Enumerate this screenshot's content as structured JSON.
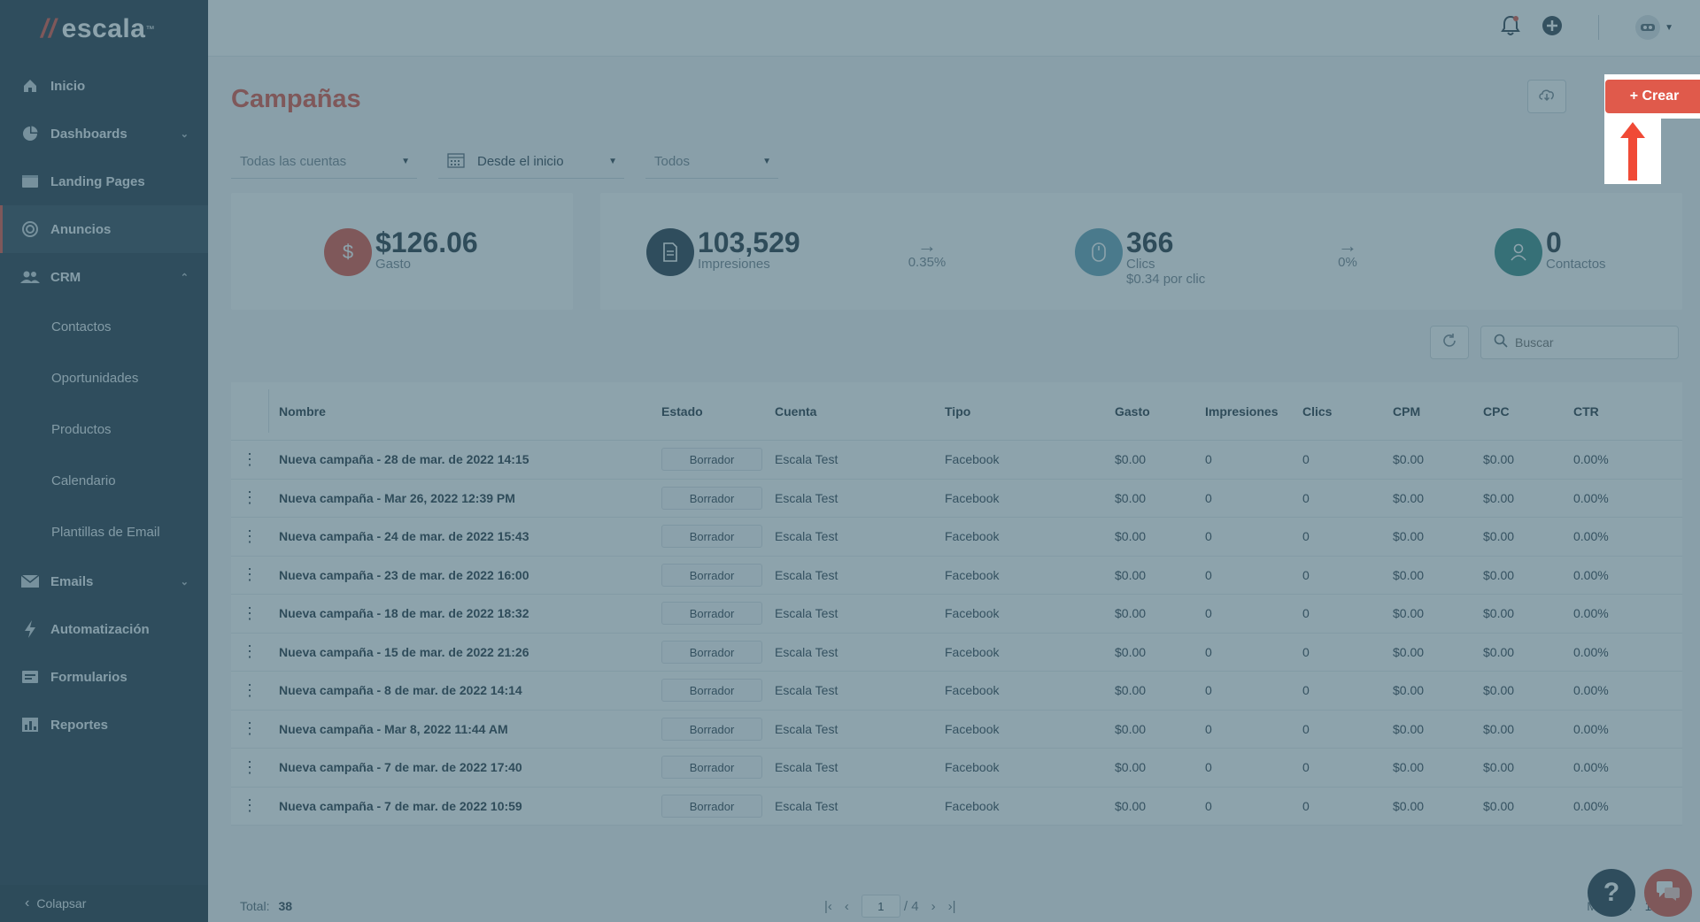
{
  "app": {
    "logo_text": "escala",
    "logo_mark": "//",
    "logo_tm": "™"
  },
  "sidebar": {
    "items": [
      {
        "label": "Inicio",
        "icon": "home-icon"
      },
      {
        "label": "Dashboards",
        "icon": "pie-chart-icon"
      },
      {
        "label": "Landing Pages",
        "icon": "browser-icon"
      },
      {
        "label": "Anuncios",
        "icon": "target-icon"
      },
      {
        "label": "CRM",
        "icon": "users-icon"
      }
    ],
    "crm_sub": [
      "Contactos",
      "Oportunidades",
      "Productos",
      "Calendario",
      "Plantillas de Email"
    ],
    "items2": [
      {
        "label": "Emails",
        "icon": "envelope-icon"
      },
      {
        "label": "Automatización",
        "icon": "bolt-icon"
      },
      {
        "label": "Formularios",
        "icon": "form-icon"
      },
      {
        "label": "Reportes",
        "icon": "bar-chart-icon"
      }
    ],
    "collapse_label": "Colapsar"
  },
  "page": {
    "title": "Campañas",
    "create_label": "+ Crear",
    "filters": {
      "account": "Todas las cuentas",
      "date": "Desde el inicio",
      "status": "Todos"
    }
  },
  "stats": {
    "spend": {
      "value": "$126.06",
      "label": "Gasto"
    },
    "impressions": {
      "value": "103,529",
      "label": "Impresiones"
    },
    "imp_to_clicks": "0.35%",
    "clicks": {
      "value": "366",
      "label": "Clics",
      "sub": "$0.34 por clic"
    },
    "clicks_to_contacts": "0%",
    "contacts": {
      "value": "0",
      "label": "Contactos"
    }
  },
  "search": {
    "placeholder": "Buscar"
  },
  "table": {
    "headers": {
      "name": "Nombre",
      "status": "Estado",
      "account": "Cuenta",
      "type": "Tipo",
      "spend": "Gasto",
      "impressions": "Impresiones",
      "clicks": "Clics",
      "cpm": "CPM",
      "cpc": "CPC",
      "ctr": "CTR"
    },
    "rows": [
      {
        "name": "Nueva campaña - 28 de mar. de 2022 14:15",
        "status": "Borrador",
        "account": "Escala Test",
        "type": "Facebook",
        "spend": "$0.00",
        "impressions": "0",
        "clicks": "0",
        "cpm": "$0.00",
        "cpc": "$0.00",
        "ctr": "0.00%"
      },
      {
        "name": "Nueva campaña - Mar 26, 2022 12:39 PM",
        "status": "Borrador",
        "account": "Escala Test",
        "type": "Facebook",
        "spend": "$0.00",
        "impressions": "0",
        "clicks": "0",
        "cpm": "$0.00",
        "cpc": "$0.00",
        "ctr": "0.00%"
      },
      {
        "name": "Nueva campaña - 24 de mar. de 2022 15:43",
        "status": "Borrador",
        "account": "Escala Test",
        "type": "Facebook",
        "spend": "$0.00",
        "impressions": "0",
        "clicks": "0",
        "cpm": "$0.00",
        "cpc": "$0.00",
        "ctr": "0.00%"
      },
      {
        "name": "Nueva campaña - 23 de mar. de 2022 16:00",
        "status": "Borrador",
        "account": "Escala Test",
        "type": "Facebook",
        "spend": "$0.00",
        "impressions": "0",
        "clicks": "0",
        "cpm": "$0.00",
        "cpc": "$0.00",
        "ctr": "0.00%"
      },
      {
        "name": "Nueva campaña - 18 de mar. de 2022 18:32",
        "status": "Borrador",
        "account": "Escala Test",
        "type": "Facebook",
        "spend": "$0.00",
        "impressions": "0",
        "clicks": "0",
        "cpm": "$0.00",
        "cpc": "$0.00",
        "ctr": "0.00%"
      },
      {
        "name": "Nueva campaña - 15 de mar. de 2022 21:26",
        "status": "Borrador",
        "account": "Escala Test",
        "type": "Facebook",
        "spend": "$0.00",
        "impressions": "0",
        "clicks": "0",
        "cpm": "$0.00",
        "cpc": "$0.00",
        "ctr": "0.00%"
      },
      {
        "name": "Nueva campaña - 8 de mar. de 2022 14:14",
        "status": "Borrador",
        "account": "Escala Test",
        "type": "Facebook",
        "spend": "$0.00",
        "impressions": "0",
        "clicks": "0",
        "cpm": "$0.00",
        "cpc": "$0.00",
        "ctr": "0.00%"
      },
      {
        "name": "Nueva campaña - Mar 8, 2022 11:44 AM",
        "status": "Borrador",
        "account": "Escala Test",
        "type": "Facebook",
        "spend": "$0.00",
        "impressions": "0",
        "clicks": "0",
        "cpm": "$0.00",
        "cpc": "$0.00",
        "ctr": "0.00%"
      },
      {
        "name": "Nueva campaña - 7 de mar. de 2022 17:40",
        "status": "Borrador",
        "account": "Escala Test",
        "type": "Facebook",
        "spend": "$0.00",
        "impressions": "0",
        "clicks": "0",
        "cpm": "$0.00",
        "cpc": "$0.00",
        "ctr": "0.00%"
      },
      {
        "name": "Nueva campaña - 7 de mar. de 2022 10:59",
        "status": "Borrador",
        "account": "Escala Test",
        "type": "Facebook",
        "spend": "$0.00",
        "impressions": "0",
        "clicks": "0",
        "cpm": "$0.00",
        "cpc": "$0.00",
        "ctr": "0.00%"
      }
    ]
  },
  "footer": {
    "total_label": "Total:",
    "total": "38",
    "page": "1",
    "page_total": "/ 4",
    "show_label": "Mostrar:",
    "show_value": "10"
  },
  "help_label": "?",
  "colors": {
    "accent": "#e05a4b",
    "sidebar": "#2f4150",
    "overlay": "#305868"
  }
}
